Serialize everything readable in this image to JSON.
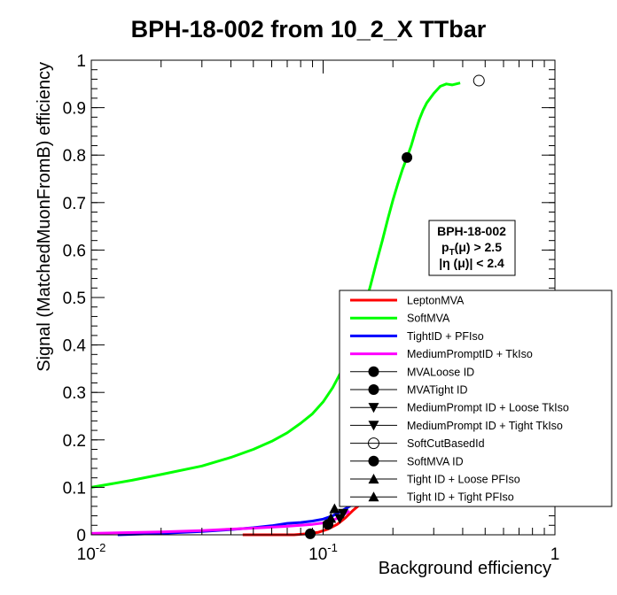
{
  "chart_data": {
    "type": "line",
    "title": "BPH-18-002 from 10_2_X TTbar",
    "xlabel": "Background efficiency",
    "ylabel": "Signal (MatchedMuonFromB) efficiency",
    "xscale": "log",
    "xlim": [
      0.01,
      1
    ],
    "ylim": [
      0,
      1
    ],
    "x_tick_labels": [
      "10^-2",
      "10^-1",
      "1"
    ],
    "y_tick_labels": [
      "0",
      "0.1",
      "0.2",
      "0.3",
      "0.4",
      "0.5",
      "0.6",
      "0.7",
      "0.8",
      "0.9",
      "1"
    ],
    "info_box": {
      "line1": "BPH-18-002",
      "line2_main": "p",
      "line2_sub": "T",
      "line2_rest": "(μ) > 2.5",
      "line3": "|η (μ)| < 2.4"
    },
    "legend_position": "bottom-right",
    "series": [
      {
        "name": "LeptonMVA",
        "color": "#ff0000",
        "x": [
          0.045,
          0.06,
          0.075,
          0.085,
          0.095,
          0.105,
          0.115,
          0.125,
          0.135,
          0.145
        ],
        "y": [
          0.0,
          0.0,
          0.0,
          0.002,
          0.005,
          0.012,
          0.022,
          0.036,
          0.052,
          0.065
        ]
      },
      {
        "name": "SoftMVA",
        "color": "#00ff00",
        "x": [
          0.01,
          0.015,
          0.02,
          0.03,
          0.04,
          0.05,
          0.06,
          0.07,
          0.08,
          0.09,
          0.1,
          0.11,
          0.12,
          0.13,
          0.14,
          0.15,
          0.16,
          0.17,
          0.18,
          0.19,
          0.2,
          0.21,
          0.22,
          0.23,
          0.24,
          0.25,
          0.26,
          0.27,
          0.28,
          0.3,
          0.32,
          0.34,
          0.36,
          0.39
        ],
        "y": [
          0.1,
          0.115,
          0.127,
          0.145,
          0.163,
          0.18,
          0.197,
          0.215,
          0.235,
          0.255,
          0.28,
          0.31,
          0.345,
          0.385,
          0.43,
          0.475,
          0.525,
          0.575,
          0.62,
          0.665,
          0.705,
          0.74,
          0.77,
          0.795,
          0.82,
          0.85,
          0.875,
          0.895,
          0.91,
          0.93,
          0.945,
          0.95,
          0.948,
          0.952
        ]
      },
      {
        "name": "TightID + PFIso",
        "color": "#0000ff",
        "x": [
          0.013,
          0.02,
          0.03,
          0.04,
          0.05,
          0.06,
          0.07,
          0.08,
          0.09,
          0.1,
          0.11,
          0.12,
          0.13,
          0.14
        ],
        "y": [
          0.0,
          0.003,
          0.007,
          0.011,
          0.015,
          0.019,
          0.024,
          0.026,
          0.029,
          0.033,
          0.04,
          0.05,
          0.06,
          0.07
        ]
      },
      {
        "name": "MediumPromptID + TkIso",
        "color": "#ff00ff",
        "x": [
          0.01,
          0.02,
          0.03,
          0.04,
          0.05,
          0.06,
          0.07,
          0.08,
          0.09,
          0.1,
          0.11,
          0.12,
          0.13
        ],
        "y": [
          0.003,
          0.006,
          0.009,
          0.012,
          0.014,
          0.016,
          0.018,
          0.02,
          0.022,
          0.025,
          0.03,
          0.04,
          0.05
        ]
      }
    ],
    "markers": [
      {
        "name": "MVALoose ID",
        "symbol": "circle-filled",
        "x": 0.105,
        "y": 0.022
      },
      {
        "name": "MVATight ID",
        "symbol": "circle-filled",
        "x": 0.088,
        "y": 0.002
      },
      {
        "name": "MediumPrompt ID + Loose TkIso",
        "symbol": "triangle-down",
        "x": 0.122,
        "y": 0.045
      },
      {
        "name": "MediumPrompt ID + Tight TkIso",
        "symbol": "triangle-down",
        "x": 0.118,
        "y": 0.034
      },
      {
        "name": "SoftCutBasedId",
        "symbol": "circle-open",
        "x": 0.47,
        "y": 0.957
      },
      {
        "name": "SoftMVA ID",
        "symbol": "circle-filled",
        "x": 0.23,
        "y": 0.795
      },
      {
        "name": "Tight ID + Loose PFIso",
        "symbol": "triangle-up",
        "x": 0.112,
        "y": 0.055
      },
      {
        "name": "Tight ID + Tight PFIso",
        "symbol": "triangle-up",
        "x": 0.108,
        "y": 0.035
      }
    ],
    "legend": [
      {
        "label": "LeptonMVA",
        "kind": "line",
        "color": "#ff0000"
      },
      {
        "label": "SoftMVA",
        "kind": "line",
        "color": "#00ff00"
      },
      {
        "label": "TightID + PFIso",
        "kind": "line",
        "color": "#0000ff"
      },
      {
        "label": "MediumPromptID + TkIso",
        "kind": "line",
        "color": "#ff00ff"
      },
      {
        "label": "MVALoose ID",
        "kind": "marker",
        "symbol": "circle-filled"
      },
      {
        "label": "MVATight ID",
        "kind": "marker",
        "symbol": "circle-filled"
      },
      {
        "label": "MediumPrompt ID + Loose TkIso",
        "kind": "marker",
        "symbol": "triangle-down"
      },
      {
        "label": "MediumPrompt ID + Tight TkIso",
        "kind": "marker",
        "symbol": "triangle-down"
      },
      {
        "label": "SoftCutBasedId",
        "kind": "marker",
        "symbol": "circle-open"
      },
      {
        "label": "SoftMVA ID",
        "kind": "marker",
        "symbol": "circle-filled"
      },
      {
        "label": "Tight ID + Loose PFIso",
        "kind": "marker",
        "symbol": "triangle-up"
      },
      {
        "label": "Tight ID + Tight PFIso",
        "kind": "marker",
        "symbol": "triangle-up"
      }
    ]
  }
}
